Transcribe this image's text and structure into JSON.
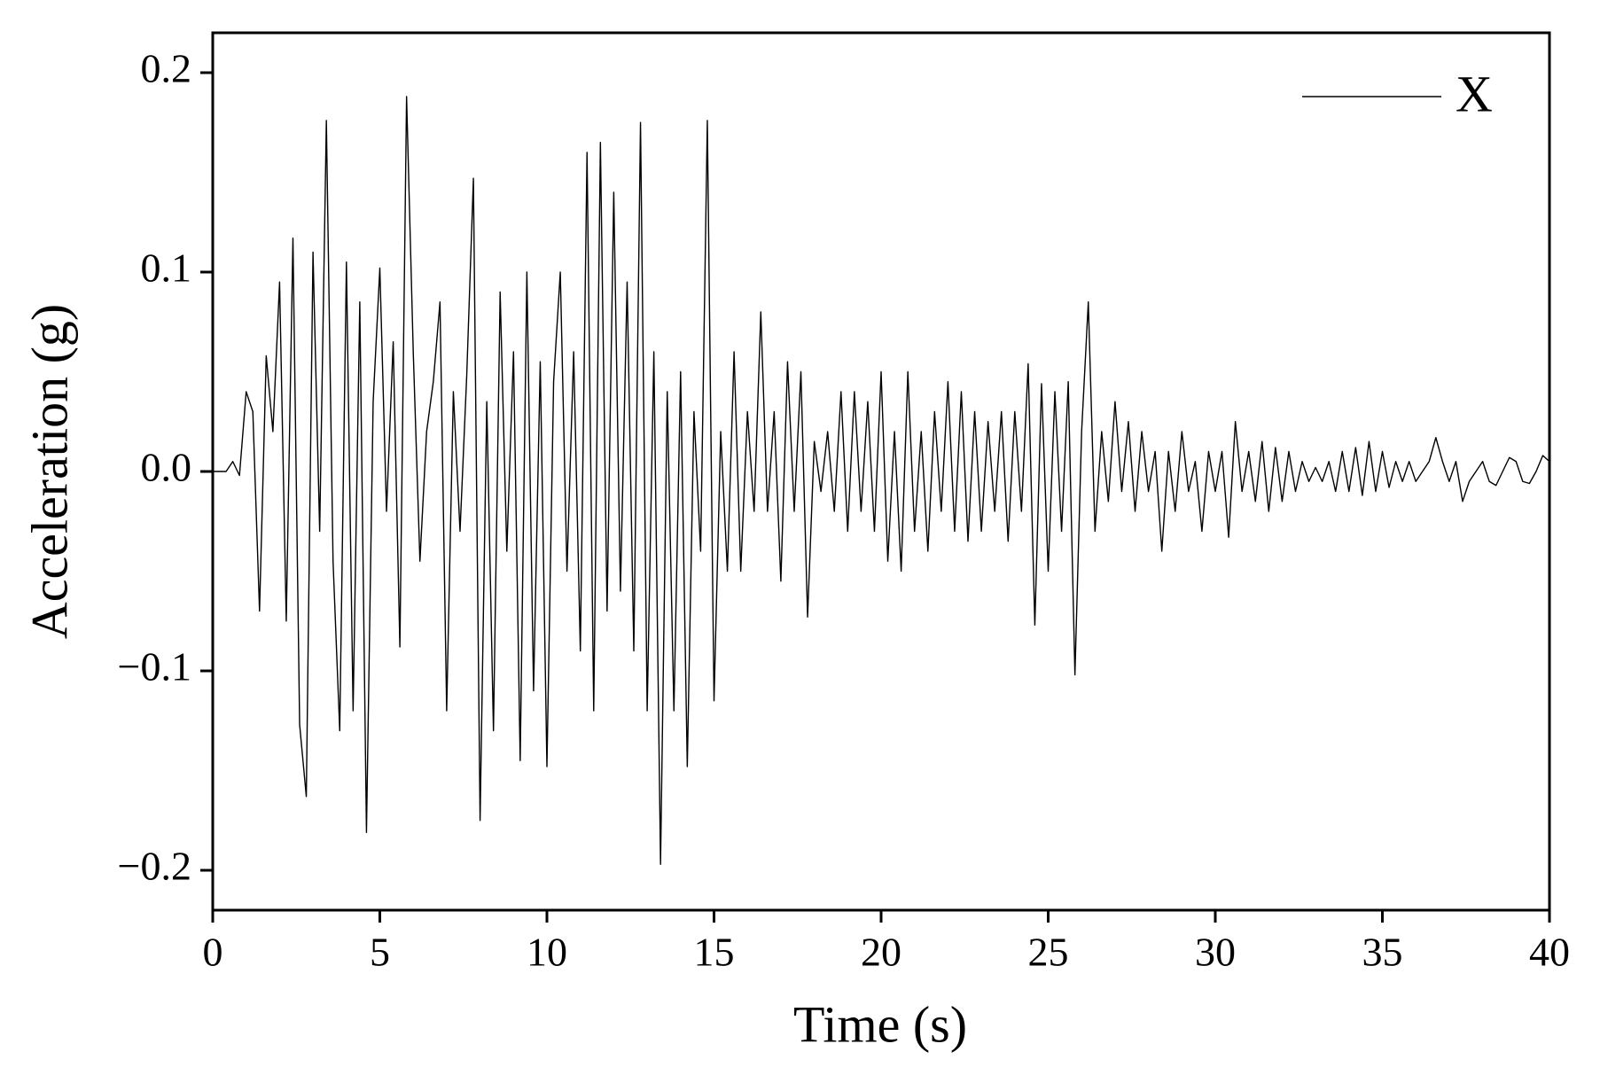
{
  "chart_data": {
    "type": "line",
    "x_label": "Time (s)",
    "y_label": "Acceleration (g)",
    "xlim": [
      0,
      40
    ],
    "ylim": [
      -0.22,
      0.22
    ],
    "xticks": [
      0,
      5,
      10,
      15,
      20,
      25,
      30,
      35,
      40
    ],
    "yticks": [
      {
        "value": -0.2,
        "label": "−0.2"
      },
      {
        "value": -0.1,
        "label": "−0.1"
      },
      {
        "value": 0,
        "label": "0.0"
      },
      0.1,
      0.2
    ],
    "legend_position": "upper right",
    "x": [
      0,
      0.2,
      0.4,
      0.6,
      0.8,
      1,
      1.2,
      1.4,
      1.6,
      1.8,
      2,
      2.2,
      2.4,
      2.6,
      2.8,
      3,
      3.2,
      3.4,
      3.6,
      3.8,
      4,
      4.2,
      4.4,
      4.6,
      4.8,
      5,
      5.2,
      5.4,
      5.6,
      5.8,
      6,
      6.2,
      6.4,
      6.6,
      6.8,
      7,
      7.2,
      7.4,
      7.6,
      7.8,
      8,
      8.2,
      8.4,
      8.6,
      8.8,
      9,
      9.2,
      9.4,
      9.6,
      9.8,
      10,
      10.2,
      10.4,
      10.6,
      10.8,
      11,
      11.2,
      11.4,
      11.6,
      11.8,
      12,
      12.2,
      12.4,
      12.6,
      12.8,
      13,
      13.2,
      13.4,
      13.6,
      13.8,
      14,
      14.2,
      14.4,
      14.6,
      14.8,
      15,
      15.2,
      15.4,
      15.6,
      15.8,
      16,
      16.2,
      16.4,
      16.6,
      16.8,
      17,
      17.2,
      17.4,
      17.6,
      17.8,
      18,
      18.2,
      18.4,
      18.6,
      18.8,
      19,
      19.2,
      19.4,
      19.6,
      19.8,
      20,
      20.2,
      20.4,
      20.6,
      20.8,
      21,
      21.2,
      21.4,
      21.6,
      21.8,
      22,
      22.2,
      22.4,
      22.6,
      22.8,
      23,
      23.2,
      23.4,
      23.6,
      23.8,
      24,
      24.2,
      24.4,
      24.6,
      24.8,
      25,
      25.2,
      25.4,
      25.6,
      25.8,
      26,
      26.2,
      26.4,
      26.6,
      26.8,
      27,
      27.2,
      27.4,
      27.6,
      27.8,
      28,
      28.2,
      28.4,
      28.6,
      28.8,
      29,
      29.2,
      29.4,
      29.6,
      29.8,
      30,
      30.2,
      30.4,
      30.6,
      30.8,
      31,
      31.2,
      31.4,
      31.6,
      31.8,
      32,
      32.2,
      32.4,
      32.6,
      32.8,
      33,
      33.2,
      33.4,
      33.6,
      33.8,
      34,
      34.2,
      34.4,
      34.6,
      34.8,
      35,
      35.2,
      35.4,
      35.6,
      35.8,
      36,
      36.2,
      36.4,
      36.6,
      36.8,
      37,
      37.2,
      37.4,
      37.6,
      37.8,
      38,
      38.2,
      38.4,
      38.6,
      38.8,
      39,
      39.2,
      39.4,
      39.6,
      39.8,
      40
    ],
    "series": [
      {
        "name": "X",
        "color": "#000000",
        "values": [
          0,
          0,
          0,
          0.005,
          -0.002,
          0.04,
          0.03,
          -0.07,
          0.058,
          0.02,
          0.095,
          -0.075,
          0.117,
          -0.127,
          -0.163,
          0.11,
          -0.03,
          0.176,
          -0.045,
          -0.13,
          0.105,
          -0.12,
          0.085,
          -0.181,
          0.035,
          0.102,
          -0.02,
          0.065,
          -0.088,
          0.188,
          0.06,
          -0.045,
          0.02,
          0.045,
          0.085,
          -0.12,
          0.04,
          -0.03,
          0.048,
          0.147,
          -0.175,
          0.035,
          -0.13,
          0.09,
          -0.04,
          0.06,
          -0.145,
          0.1,
          -0.11,
          0.055,
          -0.148,
          0.045,
          0.1,
          -0.05,
          0.06,
          -0.09,
          0.16,
          -0.12,
          0.165,
          -0.07,
          0.14,
          -0.06,
          0.095,
          -0.09,
          0.175,
          -0.12,
          0.06,
          -0.197,
          0.04,
          -0.12,
          0.05,
          -0.148,
          0.03,
          -0.04,
          0.176,
          -0.115,
          0.02,
          -0.05,
          0.06,
          -0.05,
          0.03,
          -0.02,
          0.08,
          -0.02,
          0.03,
          -0.055,
          0.055,
          -0.02,
          0.05,
          -0.073,
          0.015,
          -0.01,
          0.02,
          -0.02,
          0.04,
          -0.03,
          0.04,
          -0.02,
          0.035,
          -0.03,
          0.05,
          -0.045,
          0.02,
          -0.05,
          0.05,
          -0.03,
          0.02,
          -0.04,
          0.03,
          -0.02,
          0.045,
          -0.03,
          0.04,
          -0.035,
          0.03,
          -0.03,
          0.025,
          -0.02,
          0.03,
          -0.035,
          0.03,
          -0.02,
          0.054,
          -0.077,
          0.044,
          -0.05,
          0.04,
          -0.03,
          0.045,
          -0.102,
          0.02,
          0.085,
          -0.03,
          0.02,
          -0.015,
          0.035,
          -0.01,
          0.025,
          -0.02,
          0.02,
          -0.01,
          0.01,
          -0.04,
          0.01,
          -0.02,
          0.02,
          -0.01,
          0.005,
          -0.03,
          0.01,
          -0.01,
          0.01,
          -0.033,
          0.025,
          -0.01,
          0.01,
          -0.015,
          0.015,
          -0.02,
          0.012,
          -0.015,
          0.01,
          -0.01,
          0.005,
          -0.005,
          0.002,
          -0.005,
          0.005,
          -0.01,
          0.01,
          -0.01,
          0.012,
          -0.012,
          0.015,
          -0.01,
          0.01,
          -0.008,
          0.005,
          -0.005,
          0.005,
          -0.005,
          0,
          0.005,
          0.017,
          0.005,
          -0.005,
          0.005,
          -0.015,
          -0.005,
          0,
          0.005,
          -0.005,
          -0.007,
          0,
          0.007,
          0.005,
          -0.005,
          -0.006,
          0,
          0.008,
          0.005
        ]
      }
    ]
  }
}
